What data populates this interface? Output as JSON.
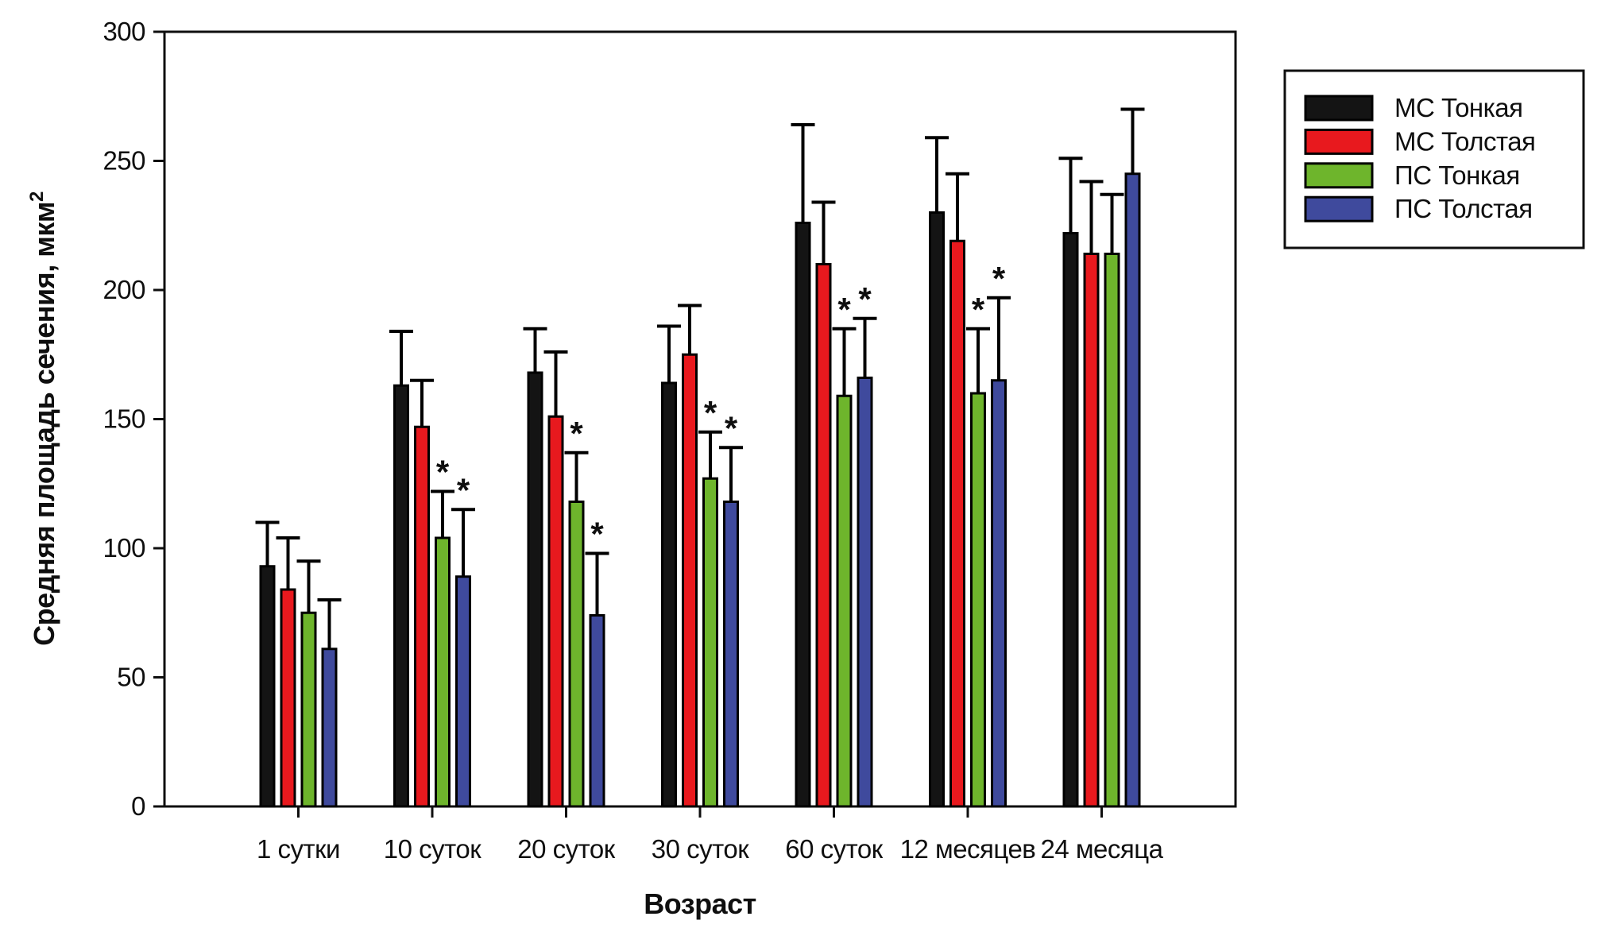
{
  "chart_data": {
    "type": "bar",
    "title": "",
    "xlabel": "Возраст",
    "ylabel": "Средняя площадь сечения, мкм",
    "ylabel_sup": "2",
    "ylim": [
      0,
      300
    ],
    "yticks": [
      0,
      50,
      100,
      150,
      200,
      250,
      300
    ],
    "grid": false,
    "legend_position": "outside-top-right",
    "sig_marker": "*",
    "categories": [
      "1 сутки",
      "10 суток",
      "20 суток",
      "30 суток",
      "60 суток",
      "12 месяцев",
      "24 месяца"
    ],
    "series": [
      {
        "name": "МС Тонкая",
        "color": "#141414",
        "values": [
          93,
          163,
          168,
          164,
          226,
          230,
          222
        ],
        "errors_plus": [
          17,
          21,
          17,
          22,
          38,
          29,
          29
        ],
        "significant": [
          false,
          false,
          false,
          false,
          false,
          false,
          false
        ]
      },
      {
        "name": "МС Толстая",
        "color": "#e8191e",
        "values": [
          84,
          147,
          151,
          175,
          210,
          219,
          214
        ],
        "errors_plus": [
          20,
          18,
          25,
          19,
          24,
          26,
          28
        ],
        "significant": [
          false,
          false,
          false,
          false,
          false,
          false,
          false
        ]
      },
      {
        "name": "ПС Тонкая",
        "color": "#6eb52c",
        "values": [
          75,
          104,
          118,
          127,
          159,
          160,
          214
        ],
        "errors_plus": [
          20,
          18,
          19,
          18,
          26,
          25,
          23
        ],
        "significant": [
          false,
          true,
          true,
          true,
          true,
          true,
          false
        ]
      },
      {
        "name": "ПС Толстая",
        "color": "#3f4a9d",
        "values": [
          61,
          89,
          74,
          118,
          166,
          165,
          245
        ],
        "errors_plus": [
          19,
          26,
          24,
          21,
          23,
          32,
          25
        ],
        "significant": [
          false,
          true,
          true,
          true,
          true,
          true,
          false
        ]
      }
    ]
  }
}
